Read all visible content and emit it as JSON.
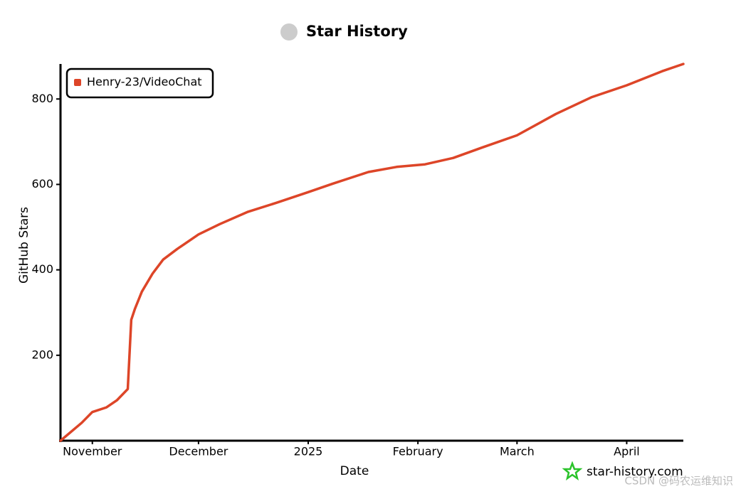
{
  "chart_data": {
    "type": "line",
    "title": "Star History",
    "xlabel": "Date",
    "ylabel": "GitHub Stars",
    "x": [
      "2024-10-23",
      "2024-10-29",
      "2024-11-01",
      "2024-11-05",
      "2024-11-08",
      "2024-11-11",
      "2024-11-12",
      "2024-11-13",
      "2024-11-15",
      "2024-11-18",
      "2024-11-21",
      "2024-11-25",
      "2024-12-01",
      "2024-12-07",
      "2024-12-15",
      "2024-12-23",
      "2025-01-01",
      "2025-01-08",
      "2025-01-18",
      "2025-01-26",
      "2025-02-03",
      "2025-02-11",
      "2025-02-19",
      "2025-03-01",
      "2025-03-12",
      "2025-03-22",
      "2025-04-01",
      "2025-04-11",
      "2025-04-17"
    ],
    "series": [
      {
        "name": "Henry-23/VideoChat",
        "color": "#dd4528",
        "values": [
          0,
          42,
          67,
          78,
          95,
          121,
          283,
          308,
          349,
          391,
          424,
          449,
          483,
          507,
          536,
          557,
          582,
          602,
          629,
          641,
          647,
          662,
          686,
          715,
          765,
          804,
          832,
          865,
          882
        ]
      }
    ],
    "xlim": [
      "2024-10-23",
      "2025-04-17"
    ],
    "xticks": [
      {
        "value": "2024-11-01",
        "label": "November"
      },
      {
        "value": "2024-12-01",
        "label": "December"
      },
      {
        "value": "2025-01-01",
        "label": "2025"
      },
      {
        "value": "2025-02-01",
        "label": "February"
      },
      {
        "value": "2025-03-01",
        "label": "March"
      },
      {
        "value": "2025-04-01",
        "label": "April"
      }
    ],
    "ylim": [
      0,
      882
    ],
    "yticks": [
      200,
      400,
      600,
      800
    ],
    "legend": "top-left",
    "watermark": "star-history.com",
    "credit": "CSDN @码农运维知识"
  }
}
